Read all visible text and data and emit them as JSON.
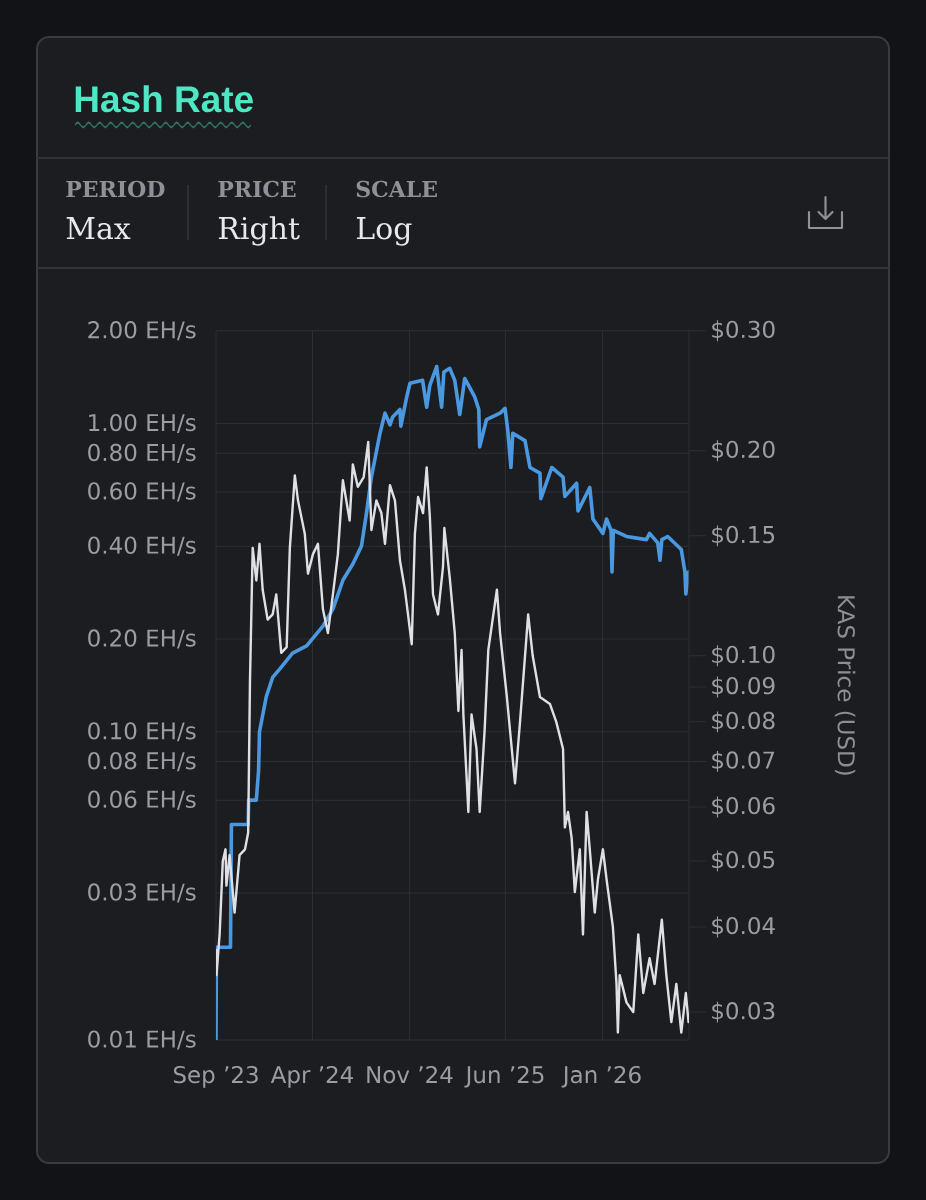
{
  "chart_data": [
    {
      "type": "line",
      "title": "Hash Rate",
      "annotations": [
        "PERIOD",
        "Max",
        "PRICE",
        "Right",
        "SCALE",
        "Log"
      ],
      "xlim": [
        "2023-09-01",
        "2026-07-11"
      ],
      "xticks": [
        {
          "value": "2023-09-01",
          "label": "Sep ’23"
        },
        {
          "value": "2024-04-01",
          "label": "Apr ’24"
        },
        {
          "value": "2024-11-01",
          "label": "Nov ’24"
        },
        {
          "value": "2025-06-01",
          "label": "Jun ’25"
        },
        {
          "value": "2026-01-01",
          "label": "Jan ’26"
        }
      ],
      "ylim": [
        0.01,
        2
      ],
      "yticks": [
        {
          "value": 0.01,
          "label": "0.01 EH/s"
        },
        {
          "value": 0.03,
          "label": "0.03 EH/s"
        },
        {
          "value": 0.06,
          "label": "0.06 EH/s"
        },
        {
          "value": 0.08,
          "label": "0.08 EH/s"
        },
        {
          "value": 0.1,
          "label": "0.10 EH/s"
        },
        {
          "value": 0.2,
          "label": "0.20 EH/s"
        },
        {
          "value": 0.4,
          "label": "0.40 EH/s"
        },
        {
          "value": 0.6,
          "label": "0.60 EH/s"
        },
        {
          "value": 0.8,
          "label": "0.80 EH/s"
        },
        {
          "value": 1,
          "label": "1.00 EH/s"
        },
        {
          "value": 2,
          "label": "2.00 EH/s"
        }
      ],
      "log": true,
      "grid": true,
      "series": [
        {
          "color": "#4a98e0",
          "x": [
            "2023-09-01",
            "2023-09-02",
            "2023-10-03",
            "2023-10-05",
            "2023-11-11",
            "2023-11-12",
            "2023-11-29",
            "2023-12-04",
            "2023-12-06",
            "2023-12-21",
            "2024-01-04",
            "2024-01-20",
            "2024-02-17",
            "2024-03-19",
            "2024-04-24",
            "2024-05-16",
            "2024-06-07",
            "2024-06-29",
            "2024-07-18",
            "2024-07-29",
            "2024-08-09",
            "2024-08-28",
            "2024-09-08",
            "2024-09-19",
            "2024-09-25",
            "2024-10-11",
            "2024-10-13",
            "2024-10-26",
            "2024-11-02",
            "2024-11-30",
            "2024-12-09",
            "2024-12-16",
            "2024-12-31",
            "2025-01-11",
            "2025-01-16",
            "2025-01-29",
            "2025-02-09",
            "2025-02-20",
            "2025-03-03",
            "2025-03-25",
            "2025-04-03",
            "2025-04-05",
            "2025-04-20",
            "2025-05-20",
            "2025-05-31",
            "2025-06-06",
            "2025-06-13",
            "2025-06-17",
            "2025-07-14",
            "2025-07-25",
            "2025-08-16",
            "2025-08-18",
            "2025-09-11",
            "2025-10-06",
            "2025-10-10",
            "2025-11-05",
            "2025-11-08",
            "2025-12-04",
            "2025-12-11",
            "2026-01-02",
            "2026-01-10",
            "2026-01-20",
            "2026-01-22",
            "2026-01-25",
            "2026-02-23",
            "2026-04-08",
            "2026-04-15",
            "2026-05-03",
            "2026-05-08",
            "2026-05-12",
            "2026-05-25",
            "2026-06-24",
            "2026-07-02",
            "2026-07-04",
            "2026-07-10"
          ],
          "values": [
            0.01,
            0.02,
            0.02,
            0.05,
            0.05,
            0.06,
            0.06,
            0.075,
            0.1,
            0.13,
            0.15,
            0.16,
            0.18,
            0.19,
            0.22,
            0.25,
            0.31,
            0.35,
            0.4,
            0.51,
            0.67,
            0.93,
            1.08,
            0.99,
            1.05,
            1.11,
            0.98,
            1.22,
            1.35,
            1.38,
            1.13,
            1.33,
            1.53,
            1.13,
            1.47,
            1.51,
            1.38,
            1.07,
            1.4,
            1.22,
            1.11,
            0.84,
            1.03,
            1.08,
            1.12,
            0.95,
            0.72,
            0.93,
            0.88,
            0.72,
            0.69,
            0.57,
            0.72,
            0.67,
            0.58,
            0.64,
            0.52,
            0.62,
            0.49,
            0.44,
            0.49,
            0.45,
            0.33,
            0.45,
            0.43,
            0.42,
            0.44,
            0.41,
            0.36,
            0.42,
            0.43,
            0.39,
            0.33,
            0.28,
            0.33
          ]
        }
      ]
    },
    {
      "type": "line",
      "ylabel": "KAS Price (USD)",
      "xlim": [
        "2023-09-01",
        "2026-07-11"
      ],
      "ylim": [
        0.0273,
        0.3
      ],
      "yticks": [
        {
          "value": 0.03,
          "label": "$0.03"
        },
        {
          "value": 0.04,
          "label": "$0.04"
        },
        {
          "value": 0.05,
          "label": "$0.05"
        },
        {
          "value": 0.06,
          "label": "$0.06"
        },
        {
          "value": 0.07,
          "label": "$0.07"
        },
        {
          "value": 0.08,
          "label": "$0.08"
        },
        {
          "value": 0.09,
          "label": "$0.09"
        },
        {
          "value": 0.1,
          "label": "$0.10"
        },
        {
          "value": 0.15,
          "label": "$0.15"
        },
        {
          "value": 0.2,
          "label": "$0.20"
        },
        {
          "value": 0.3,
          "label": "$0.30"
        }
      ],
      "log": true,
      "tick_labels": "y",
      "series": [
        {
          "color": "#dfe0e6",
          "x": [
            "2023-09-01",
            "2023-09-02",
            "2023-09-09",
            "2023-09-16",
            "2023-09-22",
            "2023-09-24",
            "2023-10-01",
            "2023-10-12",
            "2023-10-23",
            "2023-11-04",
            "2023-11-11",
            "2023-11-15",
            "2023-11-21",
            "2023-11-29",
            "2023-12-06",
            "2023-12-13",
            "2023-12-24",
            "2024-01-04",
            "2024-01-12",
            "2024-01-23",
            "2024-02-04",
            "2024-02-11",
            "2024-02-22",
            "2024-02-29",
            "2024-03-15",
            "2024-03-22",
            "2024-04-02",
            "2024-04-13",
            "2024-04-24",
            "2024-05-05",
            "2024-05-16",
            "2024-05-27",
            "2024-06-07",
            "2024-06-22",
            "2024-06-29",
            "2024-07-10",
            "2024-07-23",
            "2024-08-02",
            "2024-08-09",
            "2024-08-20",
            "2024-08-31",
            "2024-09-08",
            "2024-09-19",
            "2024-09-30",
            "2024-10-11",
            "2024-10-22",
            "2024-11-06",
            "2024-11-13",
            "2024-11-20",
            "2024-12-01",
            "2024-12-09",
            "2024-12-16",
            "2024-12-23",
            "2025-01-03",
            "2025-01-14",
            "2025-01-17",
            "2025-01-29",
            "2025-02-09",
            "2025-02-17",
            "2025-02-24",
            "2025-02-28",
            "2025-03-11",
            "2025-03-18",
            "2025-03-29",
            "2025-04-05",
            "2025-04-16",
            "2025-04-24",
            "2025-05-13",
            "2025-05-20",
            "2025-06-04",
            "2025-06-22",
            "2025-07-03",
            "2025-07-21",
            "2025-07-31",
            "2025-08-16",
            "2025-09-07",
            "2025-09-21",
            "2025-10-06",
            "2025-10-10",
            "2025-10-17",
            "2025-10-25",
            "2025-11-01",
            "2025-11-12",
            "2025-11-19",
            "2025-11-27",
            "2025-12-04",
            "2025-12-15",
            "2025-12-22",
            "2026-01-02",
            "2026-01-10",
            "2026-01-24",
            "2026-02-01",
            "2026-02-04",
            "2026-02-08",
            "2026-02-23",
            "2026-03-10",
            "2026-03-21",
            "2026-04-01",
            "2026-04-15",
            "2026-04-26",
            "2026-05-12",
            "2026-05-22",
            "2026-06-02",
            "2026-06-13",
            "2026-06-24",
            "2026-07-04",
            "2026-07-10"
          ],
          "values": [
            0.037,
            0.034,
            0.039,
            0.05,
            0.052,
            0.046,
            0.051,
            0.042,
            0.051,
            0.052,
            0.055,
            0.092,
            0.144,
            0.129,
            0.146,
            0.125,
            0.113,
            0.115,
            0.123,
            0.101,
            0.103,
            0.144,
            0.184,
            0.169,
            0.151,
            0.132,
            0.141,
            0.146,
            0.117,
            0.108,
            0.123,
            0.141,
            0.181,
            0.158,
            0.191,
            0.177,
            0.183,
            0.206,
            0.153,
            0.169,
            0.162,
            0.146,
            0.178,
            0.169,
            0.138,
            0.125,
            0.104,
            0.151,
            0.171,
            0.162,
            0.189,
            0.16,
            0.123,
            0.115,
            0.135,
            0.154,
            0.13,
            0.108,
            0.083,
            0.102,
            0.082,
            0.059,
            0.082,
            0.073,
            0.059,
            0.078,
            0.102,
            0.125,
            0.108,
            0.087,
            0.065,
            0.08,
            0.115,
            0.1,
            0.087,
            0.085,
            0.08,
            0.073,
            0.056,
            0.059,
            0.054,
            0.045,
            0.052,
            0.039,
            0.059,
            0.052,
            0.042,
            0.047,
            0.052,
            0.047,
            0.04,
            0.033,
            0.028,
            0.034,
            0.031,
            0.03,
            0.039,
            0.032,
            0.036,
            0.033,
            0.041,
            0.034,
            0.029,
            0.033,
            0.028,
            0.032,
            0.029
          ]
        }
      ]
    }
  ]
}
